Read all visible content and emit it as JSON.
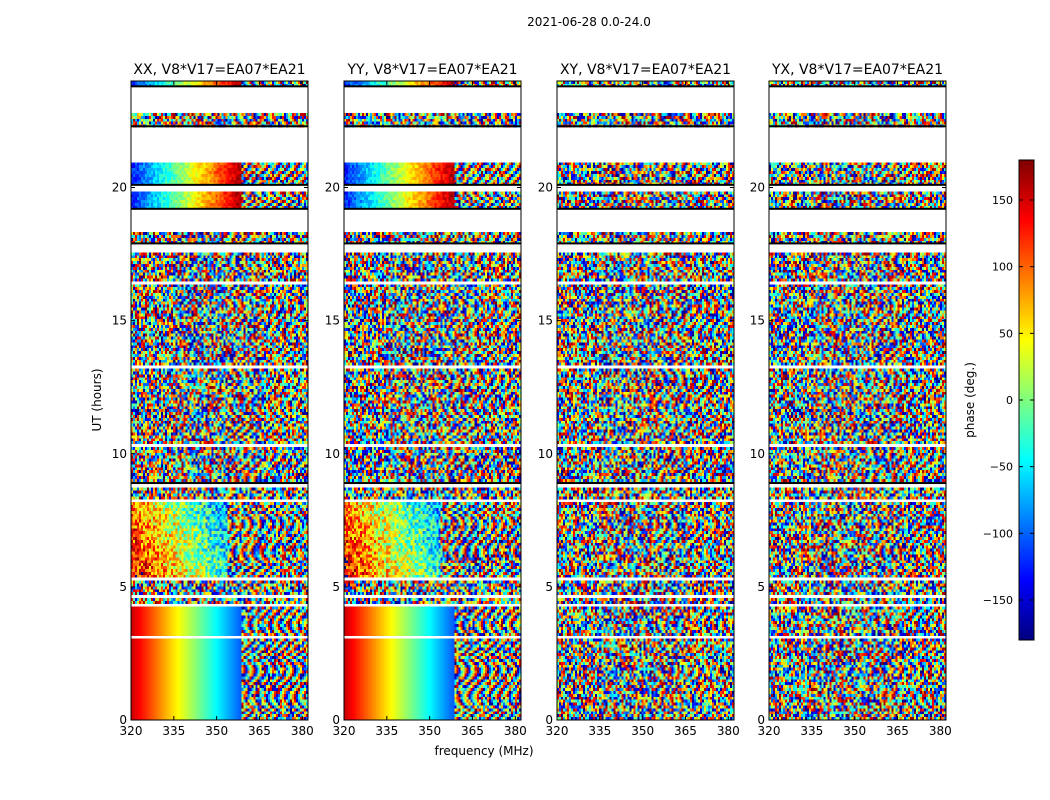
{
  "chart_data": {
    "type": "heatmap",
    "suptitle": "2021-06-28 0.0-24.0",
    "xlabel": "frequency (MHz)",
    "ylabel": "UT (hours)",
    "xlim": [
      320,
      382
    ],
    "ylim": [
      0,
      24
    ],
    "xticks": [
      320,
      335,
      350,
      365,
      380
    ],
    "yticks": [
      0,
      5,
      10,
      15,
      20
    ],
    "colorbar": {
      "label": "phase (deg.)",
      "range": [
        -180,
        180
      ],
      "ticks": [
        -150,
        -100,
        -50,
        0,
        50,
        100,
        150
      ],
      "colormap": "jet",
      "colors": [
        "#00007f",
        "#0000ff",
        "#007fff",
        "#00ffff",
        "#7fff7f",
        "#ffff00",
        "#ff7f00",
        "#ff0000",
        "#7f0000"
      ]
    },
    "flagged_ut_hours": [
      [
        22.8,
        23.8
      ],
      [
        21.0,
        22.3
      ],
      [
        19.9,
        20.1
      ],
      [
        18.3,
        19.2
      ],
      [
        17.6,
        17.9
      ],
      [
        16.4,
        16.5
      ],
      [
        13.2,
        13.3
      ],
      [
        10.3,
        10.4
      ],
      [
        8.7,
        8.9
      ],
      [
        8.2,
        8.3
      ],
      [
        5.2,
        5.3
      ],
      [
        4.6,
        4.7
      ],
      [
        4.3,
        4.4
      ],
      [
        3.45,
        3.5
      ],
      [
        3.1,
        3.15
      ],
      [
        2.05,
        2.1
      ],
      [
        1.6,
        1.65
      ],
      [
        0.1,
        0.15
      ]
    ],
    "panels": [
      {
        "title": "XX, V8*V17=EA07*EA21",
        "pol": "XX"
      },
      {
        "title": "YY, V8*V17=EA07*EA21",
        "pol": "YY"
      },
      {
        "title": "XY, V8*V17=EA07*EA21",
        "pol": "XY"
      },
      {
        "title": "YX, V8*V17=EA07*EA21",
        "pol": "YX"
      }
    ]
  }
}
